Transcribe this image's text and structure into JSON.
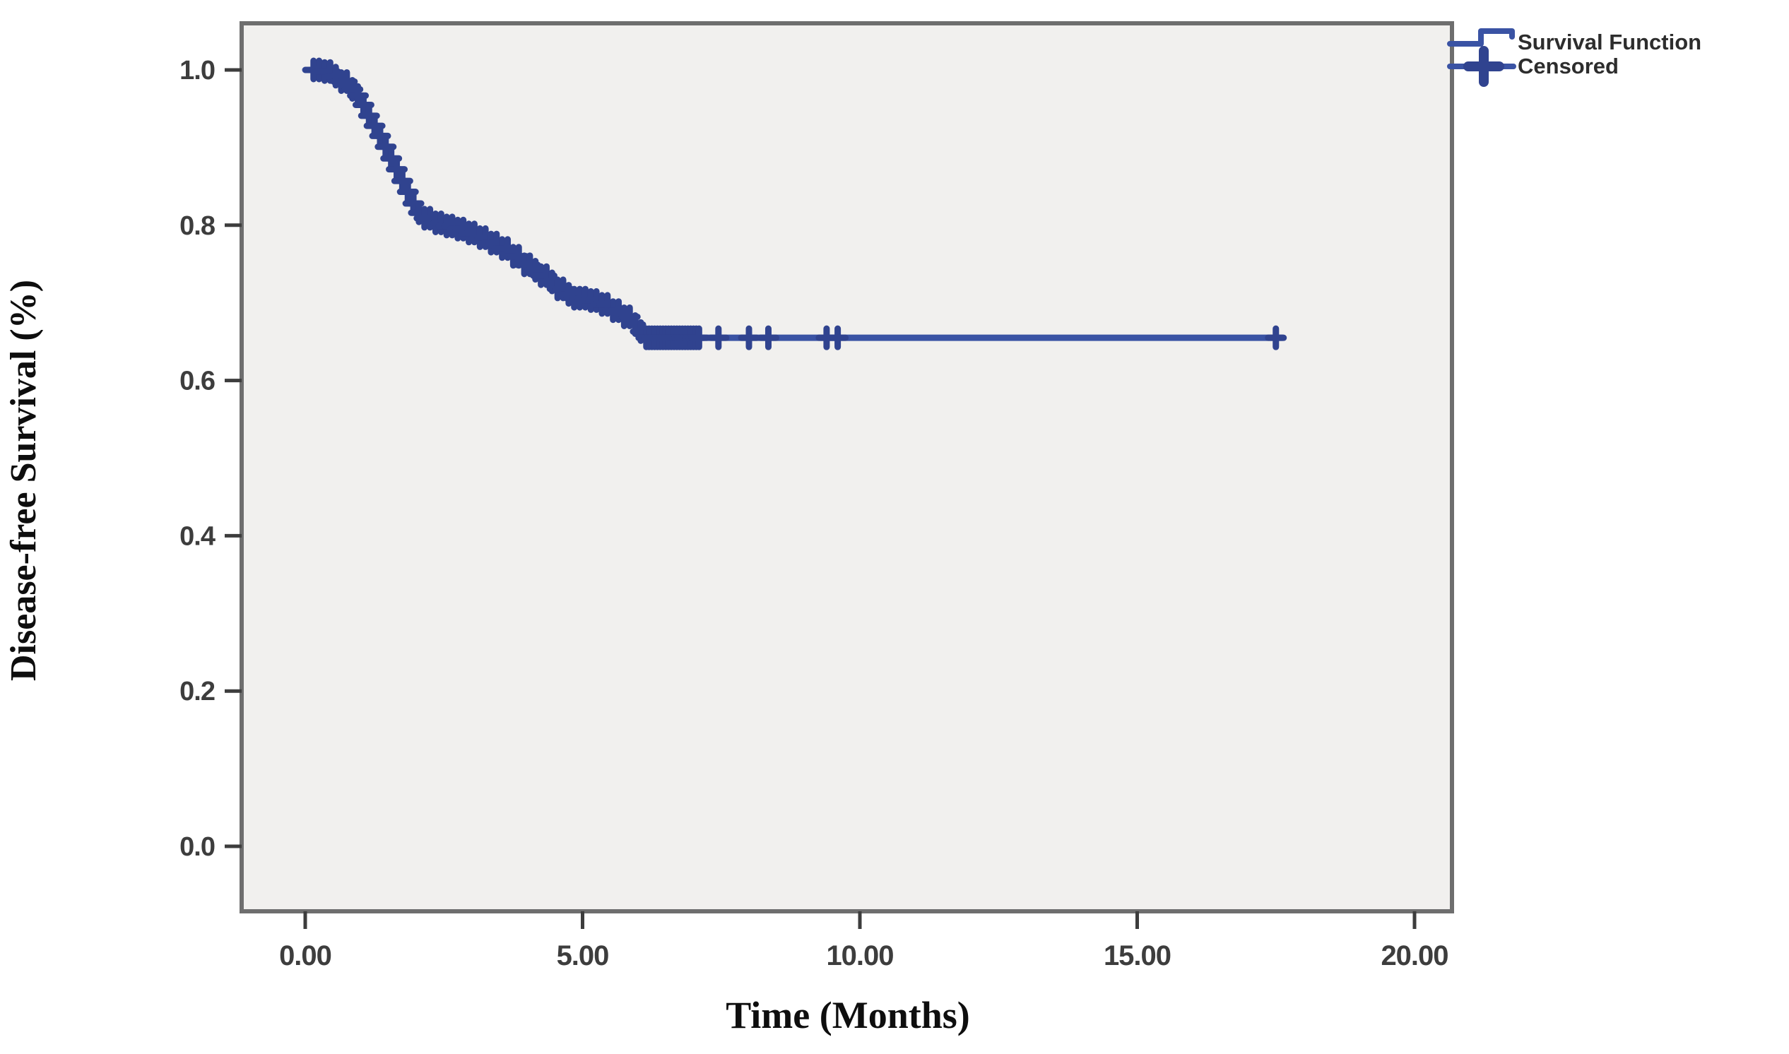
{
  "figure": {
    "background_color": "#ffffff",
    "title": ""
  },
  "chart_data": {
    "type": "line",
    "subtype": "kaplan_meier_step",
    "title": "",
    "xlabel": "Time (Months)",
    "ylabel": "Disease-free Survival (%)",
    "xlim": [
      -1.15,
      20.9
    ],
    "ylim": [
      -0.085,
      1.06
    ],
    "grid": false,
    "legend_position": "top-right-outside",
    "plot_background": "#f1f0ee",
    "frame_color": "#6e6e6e",
    "tick_color": "#3d3d3d",
    "xticks": [
      {
        "value": 0,
        "label": "0.00"
      },
      {
        "value": 5,
        "label": "5.00"
      },
      {
        "value": 10,
        "label": "10.00"
      },
      {
        "value": 15,
        "label": "15.00"
      },
      {
        "value": 20,
        "label": "20.00"
      }
    ],
    "yticks": [
      {
        "value": 1.0,
        "label": "1.0"
      },
      {
        "value": 0.8,
        "label": "0.8"
      },
      {
        "value": 0.6,
        "label": "0.6"
      },
      {
        "value": 0.4,
        "label": "0.4"
      },
      {
        "value": 0.2,
        "label": "0.2"
      },
      {
        "value": 0.0,
        "label": "0.0"
      }
    ],
    "series": [
      {
        "name": "Survival Function",
        "color": "#3a53a4",
        "censor_color": "#30438f",
        "line_width": 9,
        "step_points": [
          [
            0,
            1.0
          ],
          [
            0.3,
            0.998
          ],
          [
            0.5,
            0.992
          ],
          [
            0.65,
            0.985
          ],
          [
            0.8,
            0.975
          ],
          [
            0.9,
            0.967
          ],
          [
            1.0,
            0.955
          ],
          [
            1.1,
            0.941
          ],
          [
            1.2,
            0.928
          ],
          [
            1.3,
            0.915
          ],
          [
            1.4,
            0.901
          ],
          [
            1.5,
            0.886
          ],
          [
            1.6,
            0.872
          ],
          [
            1.7,
            0.857
          ],
          [
            1.8,
            0.843
          ],
          [
            1.9,
            0.828
          ],
          [
            2.0,
            0.816
          ],
          [
            2.15,
            0.809
          ],
          [
            2.35,
            0.803
          ],
          [
            2.55,
            0.799
          ],
          [
            2.75,
            0.795
          ],
          [
            2.95,
            0.79
          ],
          [
            3.15,
            0.784
          ],
          [
            3.35,
            0.777
          ],
          [
            3.55,
            0.77
          ],
          [
            3.75,
            0.76
          ],
          [
            3.95,
            0.749
          ],
          [
            4.1,
            0.742
          ],
          [
            4.25,
            0.735
          ],
          [
            4.4,
            0.727
          ],
          [
            4.55,
            0.718
          ],
          [
            4.7,
            0.711
          ],
          [
            4.85,
            0.706
          ],
          [
            5.1,
            0.703
          ],
          [
            5.35,
            0.698
          ],
          [
            5.55,
            0.69
          ],
          [
            5.75,
            0.682
          ],
          [
            5.9,
            0.672
          ],
          [
            6.0,
            0.663
          ],
          [
            6.15,
            0.655
          ],
          [
            17.62,
            0.655
          ]
        ]
      }
    ],
    "censored": {
      "name": "Censored",
      "times": [
        0.15,
        0.25,
        0.35,
        0.45,
        0.55,
        0.65,
        0.75,
        0.85,
        0.95,
        1.05,
        1.15,
        1.25,
        1.35,
        1.45,
        1.55,
        1.65,
        1.75,
        1.85,
        1.95,
        2.05,
        2.15,
        2.25,
        2.35,
        2.45,
        2.55,
        2.65,
        2.75,
        2.85,
        2.95,
        3.05,
        3.15,
        3.25,
        3.35,
        3.45,
        3.55,
        3.65,
        3.75,
        3.85,
        3.95,
        4.05,
        4.15,
        4.25,
        4.35,
        4.45,
        4.55,
        4.65,
        4.75,
        4.85,
        4.95,
        5.05,
        5.15,
        5.25,
        5.35,
        5.45,
        5.55,
        5.65,
        5.75,
        5.85,
        5.95,
        6.05,
        6.15,
        6.2,
        6.25,
        6.3,
        6.35,
        6.4,
        6.45,
        6.5,
        6.55,
        6.6,
        6.65,
        6.7,
        6.75,
        6.8,
        6.85,
        6.9,
        6.95,
        7.0,
        7.05,
        7.1,
        7.45,
        8.0,
        8.35,
        9.4,
        9.6,
        17.5
      ]
    }
  },
  "legend": {
    "text_color": "#2d2d2d",
    "items": [
      {
        "label": "Survival Function",
        "symbol": "step-line"
      },
      {
        "label": "Censored",
        "symbol": "plus-cross"
      }
    ]
  }
}
